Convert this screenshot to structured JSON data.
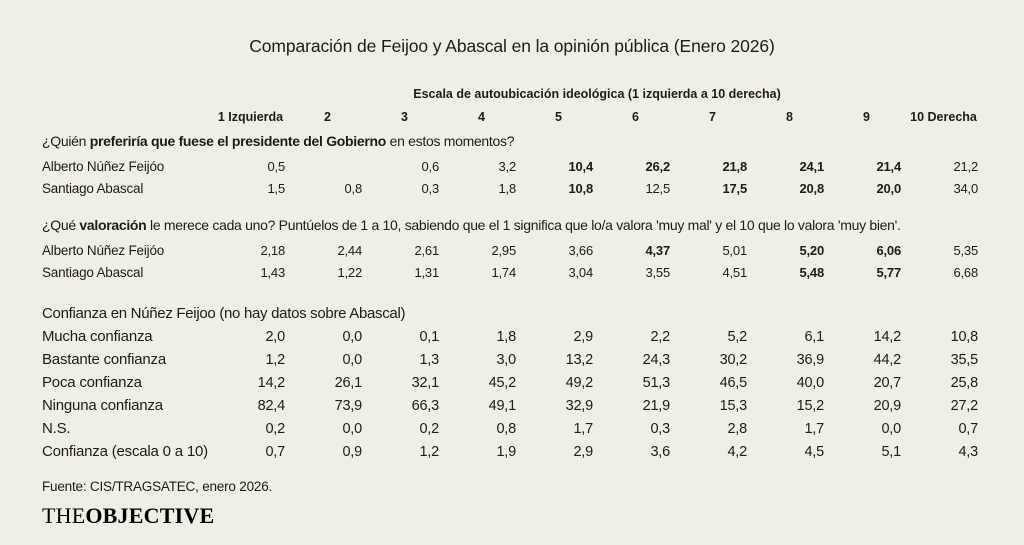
{
  "title": "Comparación de Feijoo y Abascal en la opinión pública (Enero 2026)",
  "scale_header": "Escala de autoubicación ideológica (1 izquierda a 10 derecha)",
  "columns": [
    "1 Izquierda",
    "2",
    "3",
    "4",
    "5",
    "6",
    "7",
    "8",
    "9",
    "10 Derecha"
  ],
  "sections": [
    {
      "large": false,
      "question_parts": [
        {
          "text": "¿Quién ",
          "bold": false
        },
        {
          "text": "preferiría que fuese el presidente del Gobierno",
          "bold": true
        },
        {
          "text": " en estos momentos?",
          "bold": false
        }
      ],
      "rows": [
        {
          "label": "Alberto Núñez Feijóo",
          "values": [
            "0,5",
            "",
            "0,6",
            "3,2",
            "10,4",
            "26,2",
            "21,8",
            "24,1",
            "21,4",
            "21,2"
          ],
          "bold": [
            false,
            false,
            false,
            false,
            true,
            true,
            true,
            true,
            true,
            false
          ]
        },
        {
          "label": "Santiago Abascal",
          "values": [
            "1,5",
            "0,8",
            "0,3",
            "1,8",
            "10,8",
            "12,5",
            "17,5",
            "20,8",
            "20,0",
            "34,0"
          ],
          "bold": [
            false,
            false,
            false,
            false,
            true,
            false,
            true,
            true,
            true,
            false
          ]
        }
      ]
    },
    {
      "large": false,
      "question_parts": [
        {
          "text": "¿Qué ",
          "bold": false
        },
        {
          "text": "valoración",
          "bold": true
        },
        {
          "text": " le merece cada uno? Puntúelos de 1 a 10, sabiendo que el 1 significa que lo/a valora 'muy mal' y el 10 que lo valora 'muy bien'.",
          "bold": false
        }
      ],
      "rows": [
        {
          "label": "Alberto Núñez Feijóo",
          "values": [
            "2,18",
            "2,44",
            "2,61",
            "2,95",
            "3,66",
            "4,37",
            "5,01",
            "5,20",
            "6,06",
            "5,35"
          ],
          "bold": [
            false,
            false,
            false,
            false,
            false,
            true,
            false,
            true,
            true,
            false
          ]
        },
        {
          "label": "Santiago Abascal",
          "values": [
            "1,43",
            "1,22",
            "1,31",
            "1,74",
            "3,04",
            "3,55",
            "4,51",
            "5,48",
            "5,77",
            "6,68"
          ],
          "bold": [
            false,
            false,
            false,
            false,
            false,
            false,
            false,
            true,
            true,
            false
          ]
        }
      ]
    },
    {
      "large": true,
      "question_parts": [
        {
          "text": "Confianza en Núñez Feijoo (no hay datos sobre Abascal)",
          "bold": false
        }
      ],
      "rows": [
        {
          "label": "Mucha confianza",
          "values": [
            "2,0",
            "0,0",
            "0,1",
            "1,8",
            "2,9",
            "2,2",
            "5,2",
            "6,1",
            "14,2",
            "10,8"
          ],
          "bold": [
            false,
            false,
            false,
            false,
            false,
            false,
            false,
            false,
            false,
            false
          ]
        },
        {
          "label": "Bastante confianza",
          "values": [
            "1,2",
            "0,0",
            "1,3",
            "3,0",
            "13,2",
            "24,3",
            "30,2",
            "36,9",
            "44,2",
            "35,5"
          ],
          "bold": [
            false,
            false,
            false,
            false,
            false,
            false,
            false,
            false,
            false,
            false
          ]
        },
        {
          "label": "Poca confianza",
          "values": [
            "14,2",
            "26,1",
            "32,1",
            "45,2",
            "49,2",
            "51,3",
            "46,5",
            "40,0",
            "20,7",
            "25,8"
          ],
          "bold": [
            false,
            false,
            false,
            false,
            false,
            false,
            false,
            false,
            false,
            false
          ]
        },
        {
          "label": "Ninguna confianza",
          "values": [
            "82,4",
            "73,9",
            "66,3",
            "49,1",
            "32,9",
            "21,9",
            "15,3",
            "15,2",
            "20,9",
            "27,2"
          ],
          "bold": [
            false,
            false,
            false,
            false,
            false,
            false,
            false,
            false,
            false,
            false
          ]
        },
        {
          "label": "N.S.",
          "values": [
            "0,2",
            "0,0",
            "0,2",
            "0,8",
            "1,7",
            "0,3",
            "2,8",
            "1,7",
            "0,0",
            "0,7"
          ],
          "bold": [
            false,
            false,
            false,
            false,
            false,
            false,
            false,
            false,
            false,
            false
          ]
        },
        {
          "label": "Confianza (escala 0 a 10)",
          "values": [
            "0,7",
            "0,9",
            "1,2",
            "1,9",
            "2,9",
            "3,6",
            "4,2",
            "4,5",
            "5,1",
            "4,3"
          ],
          "bold": [
            false,
            false,
            false,
            false,
            false,
            false,
            false,
            false,
            false,
            false
          ]
        }
      ]
    }
  ],
  "source": "Fuente: CIS/TRAGSATEC, enero 2026.",
  "logo": {
    "part1": "THE",
    "part2": "OBJECTIVE"
  },
  "colors": {
    "background": "#f0efe6",
    "text": "#1d1c18"
  },
  "chart_data": {
    "type": "table",
    "title": "Comparación de Feijoo y Abascal en la opinión pública (Enero 2026)",
    "column_group_label": "Escala de autoubicación ideológica (1 izquierda a 10 derecha)",
    "columns": [
      "1 Izquierda",
      "2",
      "3",
      "4",
      "5",
      "6",
      "7",
      "8",
      "9",
      "10 Derecha"
    ],
    "tables": [
      {
        "question": "¿Quién preferiría que fuese el presidente del Gobierno en estos momentos?",
        "rows": [
          {
            "label": "Alberto Núñez Feijóo",
            "values": [
              0.5,
              null,
              0.6,
              3.2,
              10.4,
              26.2,
              21.8,
              24.1,
              21.4,
              21.2
            ]
          },
          {
            "label": "Santiago Abascal",
            "values": [
              1.5,
              0.8,
              0.3,
              1.8,
              10.8,
              12.5,
              17.5,
              20.8,
              20.0,
              34.0
            ]
          }
        ]
      },
      {
        "question": "¿Qué valoración le merece cada uno? Puntúelos de 1 a 10, sabiendo que el 1 significa que lo/a valora 'muy mal' y el 10 que lo valora 'muy bien'.",
        "rows": [
          {
            "label": "Alberto Núñez Feijóo",
            "values": [
              2.18,
              2.44,
              2.61,
              2.95,
              3.66,
              4.37,
              5.01,
              5.2,
              6.06,
              5.35
            ]
          },
          {
            "label": "Santiago Abascal",
            "values": [
              1.43,
              1.22,
              1.31,
              1.74,
              3.04,
              3.55,
              4.51,
              5.48,
              5.77,
              6.68
            ]
          }
        ]
      },
      {
        "question": "Confianza en Núñez Feijoo (no hay datos sobre Abascal)",
        "rows": [
          {
            "label": "Mucha confianza",
            "values": [
              2.0,
              0.0,
              0.1,
              1.8,
              2.9,
              2.2,
              5.2,
              6.1,
              14.2,
              10.8
            ]
          },
          {
            "label": "Bastante confianza",
            "values": [
              1.2,
              0.0,
              1.3,
              3.0,
              13.2,
              24.3,
              30.2,
              36.9,
              44.2,
              35.5
            ]
          },
          {
            "label": "Poca confianza",
            "values": [
              14.2,
              26.1,
              32.1,
              45.2,
              49.2,
              51.3,
              46.5,
              40.0,
              20.7,
              25.8
            ]
          },
          {
            "label": "Ninguna confianza",
            "values": [
              82.4,
              73.9,
              66.3,
              49.1,
              32.9,
              21.9,
              15.3,
              15.2,
              20.9,
              27.2
            ]
          },
          {
            "label": "N.S.",
            "values": [
              0.2,
              0.0,
              0.2,
              0.8,
              1.7,
              0.3,
              2.8,
              1.7,
              0.0,
              0.7
            ]
          },
          {
            "label": "Confianza (escala 0 a 10)",
            "values": [
              0.7,
              0.9,
              1.2,
              1.9,
              2.9,
              3.6,
              4.2,
              4.5,
              5.1,
              4.3
            ]
          }
        ]
      }
    ],
    "source": "Fuente: CIS/TRAGSATEC, enero 2026."
  }
}
